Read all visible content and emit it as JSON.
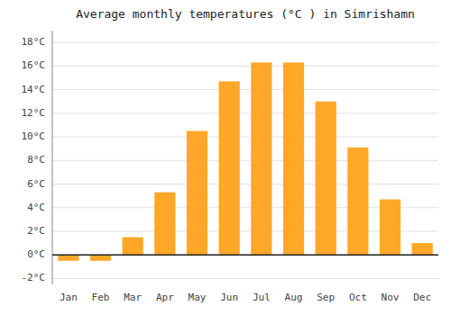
{
  "chart_data": {
    "type": "bar",
    "title": "Average monthly temperatures (°C ) in Simrishamn",
    "categories": [
      "Jan",
      "Feb",
      "Mar",
      "Apr",
      "May",
      "Jun",
      "Jul",
      "Aug",
      "Sep",
      "Oct",
      "Nov",
      "Dec"
    ],
    "values": [
      -0.5,
      -0.5,
      1.5,
      5.3,
      10.5,
      14.7,
      16.3,
      16.3,
      13.0,
      9.1,
      4.7,
      1.0
    ],
    "color": "#FFA726",
    "ylim": [
      -2.5,
      19
    ],
    "yticks": [
      {
        "value": -2,
        "label": "-2°C"
      },
      {
        "value": 0,
        "label": "0°C"
      },
      {
        "value": 2,
        "label": "2°C"
      },
      {
        "value": 4,
        "label": "4°C"
      },
      {
        "value": 6,
        "label": "6°C"
      },
      {
        "value": 8,
        "label": "8°C"
      },
      {
        "value": 10,
        "label": "10°C"
      },
      {
        "value": 12,
        "label": "12°C"
      },
      {
        "value": 14,
        "label": "14°C"
      },
      {
        "value": 16,
        "label": "16°C"
      },
      {
        "value": 18,
        "label": "18°C"
      }
    ],
    "grid": true
  }
}
